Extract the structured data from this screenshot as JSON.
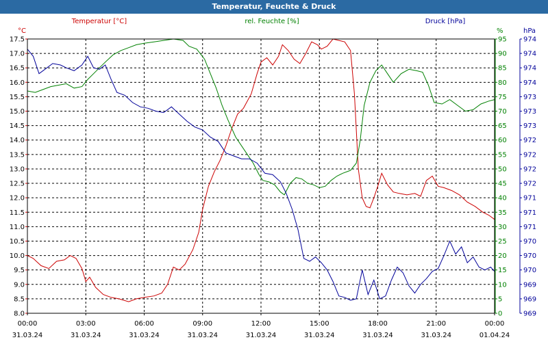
{
  "window": {
    "title": "Temperatur, Feuchte & Druck"
  },
  "chart_data": {
    "type": "line",
    "title": "Temperatur, Feuchte & Druck",
    "colors": {
      "temperature": "#cc0000",
      "humidity": "#008000",
      "pressure": "#000099",
      "grid": "#000000",
      "titlebar": "#2b6aa3"
    },
    "grid": true,
    "x_ticks": [
      {
        "t": 0,
        "time": "00:00",
        "date": "31.03.24"
      },
      {
        "t": 3,
        "time": "03:00",
        "date": "31.03.24"
      },
      {
        "t": 6,
        "time": "06:00",
        "date": "31.03.24"
      },
      {
        "t": 9,
        "time": "09:00",
        "date": "31.03.24"
      },
      {
        "t": 12,
        "time": "12:00",
        "date": "31.03.24"
      },
      {
        "t": 15,
        "time": "15:00",
        "date": "31.03.24"
      },
      {
        "t": 18,
        "time": "18:00",
        "date": "31.03.24"
      },
      {
        "t": 21,
        "time": "21:00",
        "date": "31.03.24"
      },
      {
        "t": 24,
        "time": "00:00",
        "date": "01.04.24"
      }
    ],
    "x_range": [
      0,
      24
    ],
    "axes": {
      "temperature": {
        "label": "Temperatur [°C]",
        "unit": "°C",
        "range": [
          8.0,
          17.5
        ],
        "ticks": [
          "8.0",
          "8.5",
          "9.0",
          "9.5",
          "10.0",
          "10.5",
          "11.0",
          "11.5",
          "12.0",
          "12.5",
          "13.0",
          "13.5",
          "14.0",
          "14.5",
          "15.0",
          "15.5",
          "16.0",
          "16.5",
          "17.0",
          "17.5"
        ]
      },
      "humidity": {
        "label": "rel. Feuchte [%]",
        "unit": "%",
        "range": [
          0,
          95
        ],
        "ticks": [
          "0",
          "5",
          "10",
          "15",
          "20",
          "25",
          "30",
          "35",
          "40",
          "45",
          "50",
          "55",
          "60",
          "65",
          "70",
          "75",
          "80",
          "85",
          "90",
          "95"
        ]
      },
      "pressure": {
        "label": "Druck [hPa]",
        "unit": "hPa",
        "range": [
          0,
          19
        ],
        "ticks": [
          "969",
          "969",
          "969",
          "970",
          "970",
          "970",
          "971",
          "971",
          "971",
          "972",
          "972",
          "972",
          "972",
          "973",
          "973",
          "973",
          "974",
          "974",
          "974",
          "974"
        ]
      }
    },
    "series": [
      {
        "name": "Temperatur [°C]",
        "axis": "temperature",
        "points": [
          [
            0,
            10.0
          ],
          [
            0.3,
            9.9
          ],
          [
            0.7,
            9.65
          ],
          [
            1.1,
            9.55
          ],
          [
            1.5,
            9.8
          ],
          [
            1.9,
            9.85
          ],
          [
            2.2,
            10.0
          ],
          [
            2.5,
            9.9
          ],
          [
            2.8,
            9.55
          ],
          [
            3.0,
            9.1
          ],
          [
            3.2,
            9.25
          ],
          [
            3.5,
            8.9
          ],
          [
            3.9,
            8.65
          ],
          [
            4.3,
            8.55
          ],
          [
            4.7,
            8.5
          ],
          [
            5.2,
            8.4
          ],
          [
            5.6,
            8.5
          ],
          [
            6.0,
            8.55
          ],
          [
            6.5,
            8.6
          ],
          [
            6.9,
            8.7
          ],
          [
            7.2,
            9.0
          ],
          [
            7.5,
            9.6
          ],
          [
            7.8,
            9.5
          ],
          [
            8.1,
            9.7
          ],
          [
            8.5,
            10.2
          ],
          [
            8.8,
            10.8
          ],
          [
            9.0,
            11.6
          ],
          [
            9.3,
            12.4
          ],
          [
            9.6,
            12.9
          ],
          [
            9.9,
            13.3
          ],
          [
            10.2,
            13.8
          ],
          [
            10.5,
            14.4
          ],
          [
            10.8,
            14.9
          ],
          [
            11.1,
            15.1
          ],
          [
            11.5,
            15.6
          ],
          [
            11.8,
            16.3
          ],
          [
            12.0,
            16.7
          ],
          [
            12.3,
            16.85
          ],
          [
            12.6,
            16.6
          ],
          [
            12.9,
            16.9
          ],
          [
            13.1,
            17.3
          ],
          [
            13.4,
            17.1
          ],
          [
            13.7,
            16.8
          ],
          [
            14.0,
            16.65
          ],
          [
            14.3,
            17.0
          ],
          [
            14.6,
            17.4
          ],
          [
            14.9,
            17.3
          ],
          [
            15.1,
            17.15
          ],
          [
            15.4,
            17.25
          ],
          [
            15.7,
            17.5
          ],
          [
            16.0,
            17.45
          ],
          [
            16.3,
            17.4
          ],
          [
            16.6,
            17.1
          ],
          [
            16.8,
            15.6
          ],
          [
            17.0,
            13.0
          ],
          [
            17.2,
            12.0
          ],
          [
            17.4,
            11.7
          ],
          [
            17.6,
            11.65
          ],
          [
            17.8,
            12.0
          ],
          [
            18.0,
            12.4
          ],
          [
            18.2,
            12.85
          ],
          [
            18.5,
            12.45
          ],
          [
            18.8,
            12.2
          ],
          [
            19.1,
            12.15
          ],
          [
            19.5,
            12.1
          ],
          [
            19.9,
            12.15
          ],
          [
            20.2,
            12.05
          ],
          [
            20.5,
            12.6
          ],
          [
            20.8,
            12.75
          ],
          [
            21.1,
            12.4
          ],
          [
            21.4,
            12.35
          ],
          [
            21.8,
            12.25
          ],
          [
            22.2,
            12.1
          ],
          [
            22.6,
            11.85
          ],
          [
            23.0,
            11.7
          ],
          [
            23.4,
            11.5
          ],
          [
            23.7,
            11.4
          ],
          [
            24.0,
            11.25
          ]
        ]
      },
      {
        "name": "rel. Feuchte [%]",
        "axis": "humidity",
        "points": [
          [
            0,
            77
          ],
          [
            0.4,
            76.5
          ],
          [
            0.8,
            77.5
          ],
          [
            1.2,
            78.5
          ],
          [
            1.6,
            79
          ],
          [
            2.0,
            79.5
          ],
          [
            2.4,
            78
          ],
          [
            2.8,
            78.5
          ],
          [
            3.1,
            81
          ],
          [
            3.4,
            83
          ],
          [
            3.7,
            85
          ],
          [
            4.0,
            87
          ],
          [
            4.4,
            89.5
          ],
          [
            4.8,
            91
          ],
          [
            5.2,
            92
          ],
          [
            5.6,
            93
          ],
          [
            6.0,
            93.5
          ],
          [
            6.5,
            94
          ],
          [
            7.0,
            94.5
          ],
          [
            7.5,
            95
          ],
          [
            8.0,
            94.5
          ],
          [
            8.3,
            92.5
          ],
          [
            8.7,
            91.5
          ],
          [
            9.1,
            88
          ],
          [
            9.4,
            83
          ],
          [
            9.7,
            78
          ],
          [
            10.0,
            72
          ],
          [
            10.3,
            67
          ],
          [
            10.7,
            61
          ],
          [
            11.0,
            58
          ],
          [
            11.3,
            55
          ],
          [
            11.6,
            52
          ],
          [
            11.9,
            48
          ],
          [
            12.1,
            46
          ],
          [
            12.4,
            45.5
          ],
          [
            12.7,
            44.5
          ],
          [
            13.0,
            42
          ],
          [
            13.2,
            41
          ],
          [
            13.5,
            45
          ],
          [
            13.8,
            47
          ],
          [
            14.1,
            46.5
          ],
          [
            14.4,
            45
          ],
          [
            14.7,
            44.5
          ],
          [
            15.0,
            43.5
          ],
          [
            15.3,
            44
          ],
          [
            15.6,
            46
          ],
          [
            15.9,
            47.5
          ],
          [
            16.2,
            48.5
          ],
          [
            16.6,
            49.5
          ],
          [
            16.9,
            52
          ],
          [
            17.1,
            60
          ],
          [
            17.3,
            72
          ],
          [
            17.6,
            80
          ],
          [
            17.9,
            84
          ],
          [
            18.2,
            86
          ],
          [
            18.5,
            83
          ],
          [
            18.8,
            80
          ],
          [
            19.2,
            83
          ],
          [
            19.6,
            84.5
          ],
          [
            20.0,
            84
          ],
          [
            20.3,
            83.5
          ],
          [
            20.6,
            79
          ],
          [
            20.9,
            73
          ],
          [
            21.3,
            72.5
          ],
          [
            21.7,
            74
          ],
          [
            22.1,
            72
          ],
          [
            22.5,
            70
          ],
          [
            22.9,
            70.5
          ],
          [
            23.3,
            72.5
          ],
          [
            23.7,
            73.5
          ],
          [
            24.0,
            74
          ]
        ]
      },
      {
        "name": "Druck [hPa]",
        "axis": "pressure",
        "points": [
          [
            0,
            18.3
          ],
          [
            0.3,
            17.8
          ],
          [
            0.6,
            16.6
          ],
          [
            0.9,
            16.9
          ],
          [
            1.3,
            17.3
          ],
          [
            1.7,
            17.2
          ],
          [
            2.0,
            17.0
          ],
          [
            2.4,
            16.8
          ],
          [
            2.8,
            17.2
          ],
          [
            3.1,
            17.8
          ],
          [
            3.4,
            17.0
          ],
          [
            3.7,
            16.9
          ],
          [
            4.0,
            17.2
          ],
          [
            4.3,
            16.2
          ],
          [
            4.6,
            15.3
          ],
          [
            5.0,
            15.1
          ],
          [
            5.4,
            14.6
          ],
          [
            5.8,
            14.3
          ],
          [
            6.2,
            14.2
          ],
          [
            6.6,
            14.0
          ],
          [
            7.0,
            13.9
          ],
          [
            7.4,
            14.3
          ],
          [
            7.8,
            13.8
          ],
          [
            8.2,
            13.3
          ],
          [
            8.6,
            12.9
          ],
          [
            9.0,
            12.7
          ],
          [
            9.4,
            12.2
          ],
          [
            9.8,
            11.9
          ],
          [
            10.2,
            11.1
          ],
          [
            10.6,
            10.9
          ],
          [
            11.0,
            10.7
          ],
          [
            11.4,
            10.7
          ],
          [
            11.8,
            10.4
          ],
          [
            12.2,
            9.7
          ],
          [
            12.6,
            9.6
          ],
          [
            13.0,
            9.1
          ],
          [
            13.3,
            8.3
          ],
          [
            13.6,
            7.2
          ],
          [
            13.9,
            5.8
          ],
          [
            14.2,
            3.8
          ],
          [
            14.5,
            3.6
          ],
          [
            14.8,
            3.9
          ],
          [
            15.1,
            3.5
          ],
          [
            15.4,
            3.0
          ],
          [
            15.7,
            2.2
          ],
          [
            16.0,
            1.2
          ],
          [
            16.3,
            1.1
          ],
          [
            16.6,
            0.9
          ],
          [
            16.9,
            1.0
          ],
          [
            17.2,
            3.0
          ],
          [
            17.5,
            1.3
          ],
          [
            17.8,
            2.3
          ],
          [
            18.1,
            1.0
          ],
          [
            18.4,
            1.2
          ],
          [
            18.7,
            2.3
          ],
          [
            19.0,
            3.2
          ],
          [
            19.3,
            2.8
          ],
          [
            19.6,
            1.9
          ],
          [
            19.9,
            1.4
          ],
          [
            20.2,
            2.0
          ],
          [
            20.5,
            2.4
          ],
          [
            20.8,
            2.9
          ],
          [
            21.1,
            3.1
          ],
          [
            21.4,
            4.0
          ],
          [
            21.7,
            5.0
          ],
          [
            22.0,
            4.1
          ],
          [
            22.3,
            4.6
          ],
          [
            22.6,
            3.5
          ],
          [
            22.9,
            3.9
          ],
          [
            23.2,
            3.2
          ],
          [
            23.5,
            3.0
          ],
          [
            23.8,
            3.2
          ],
          [
            24.0,
            2.9
          ]
        ]
      }
    ]
  }
}
